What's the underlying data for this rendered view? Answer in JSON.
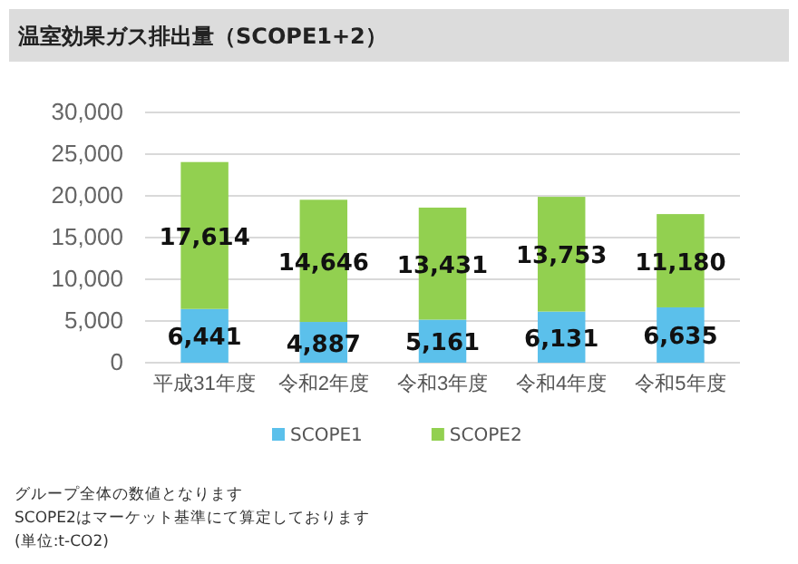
{
  "chart_data": {
    "type": "bar",
    "title": "温室効果ガス排出量（SCOPE1+2）",
    "categories": [
      "平成31年度",
      "令和2年度",
      "令和3年度",
      "令和4年度",
      "令和5年度"
    ],
    "stacked": true,
    "series": [
      {
        "name": "SCOPE1",
        "color": "#5bc0eb",
        "values": [
          6441,
          4887,
          5161,
          6131,
          6635
        ],
        "value_labels": [
          "6,441",
          "4,887",
          "5,161",
          "6,131",
          "6,635"
        ]
      },
      {
        "name": "SCOPE2",
        "color": "#92d050",
        "values": [
          17614,
          14646,
          13431,
          13753,
          11180
        ],
        "value_labels": [
          "17,614",
          "14,646",
          "13,431",
          "13,753",
          "11,180"
        ]
      }
    ],
    "ylim": [
      0,
      30000
    ],
    "yticks": [
      {
        "value": 0,
        "label": "0"
      },
      {
        "value": 5000,
        "label": "5,000"
      },
      {
        "value": 10000,
        "label": "10,000"
      },
      {
        "value": 15000,
        "label": "15,000"
      },
      {
        "value": 20000,
        "label": "20,000"
      },
      {
        "value": 25000,
        "label": "25,000"
      },
      {
        "value": 30000,
        "label": "30,000"
      }
    ],
    "grid": "y",
    "legend": "bottom",
    "annotations": [
      "グループ全体の数値となります",
      "SCOPE2はマーケット基準にて算定しております",
      "(単位:t-CO2)"
    ]
  }
}
